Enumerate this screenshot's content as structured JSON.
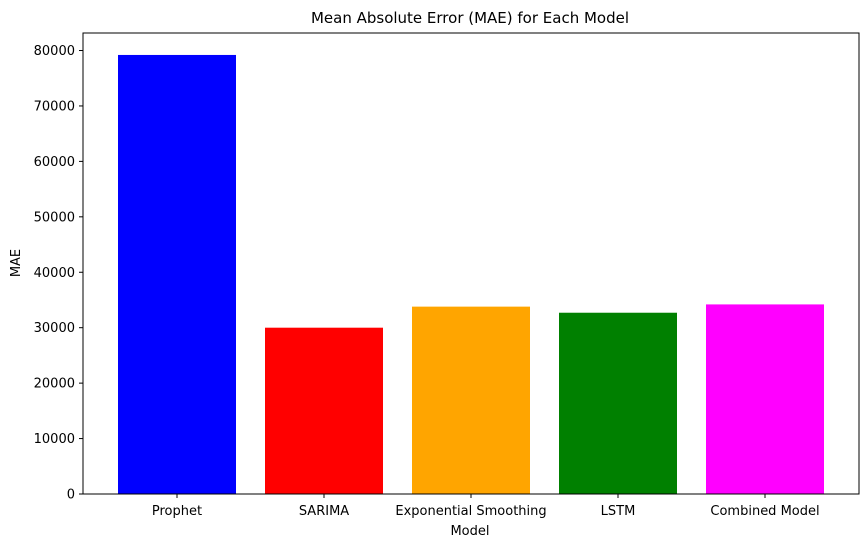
{
  "chart_data": {
    "type": "bar",
    "title": "Mean Absolute Error (MAE) for Each Model",
    "xlabel": "Model",
    "ylabel": "MAE",
    "categories": [
      "Prophet",
      "SARIMA",
      "Exponential Smoothing",
      "LSTM",
      "Combined Model"
    ],
    "values": [
      79200,
      30000,
      33800,
      32700,
      34200
    ],
    "colors": [
      "#0000ff",
      "#ff0000",
      "#ffa500",
      "#008000",
      "#ff00ff"
    ],
    "ylim": [
      0,
      83160
    ],
    "yticks": [
      0,
      10000,
      20000,
      30000,
      40000,
      50000,
      60000,
      70000,
      80000
    ],
    "grid": false,
    "legend": "none"
  }
}
